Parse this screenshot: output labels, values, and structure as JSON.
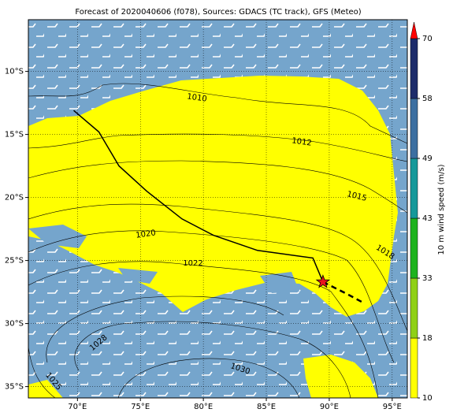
{
  "chart_data": {
    "type": "map",
    "title": "Forecast of 2020040606 (f078), Sources: GDACS (TC track), GFS (Meteo)",
    "xlim": [
      66.1,
      96.2
    ],
    "ylim": [
      -35.9,
      -5.9
    ],
    "xticks": [
      {
        "value": 70,
        "label": "70°E"
      },
      {
        "value": 75,
        "label": "75°E"
      },
      {
        "value": 80,
        "label": "80°E"
      },
      {
        "value": 85,
        "label": "85°E"
      },
      {
        "value": 90,
        "label": "90°E"
      },
      {
        "value": 95,
        "label": "95°E"
      }
    ],
    "yticks": [
      {
        "value": -10,
        "label": "10°S"
      },
      {
        "value": -15,
        "label": "15°S"
      },
      {
        "value": -20,
        "label": "20°S"
      },
      {
        "value": -25,
        "label": "25°S"
      },
      {
        "value": -30,
        "label": "30°S"
      },
      {
        "value": -35,
        "label": "35°S"
      }
    ],
    "grid": true,
    "track": {
      "x": [
        69.7,
        71.7,
        73.3,
        75.5,
        78.3,
        80.8,
        84.3,
        88.7,
        89.5
      ],
      "y": [
        -13.1,
        -14.8,
        -17.5,
        -19.5,
        -21.7,
        -23.0,
        -24.2,
        -24.8,
        -26.7
      ],
      "color": "#000000"
    },
    "forecast": {
      "x": [
        89.5,
        91.5,
        92.8
      ],
      "y": [
        -26.7,
        -27.7,
        -28.4
      ],
      "color": "#000000"
    },
    "current_position": {
      "x": 89.5,
      "y": -26.7,
      "color": "#e8141c"
    },
    "contour_labels": [
      "1010",
      "1012",
      "1015",
      "1018",
      "1020",
      "1022",
      "1028",
      "1030",
      "1025"
    ],
    "colorbar": {
      "label": "10 m wind speed (m/s)",
      "ticks": [
        10,
        18,
        33,
        43,
        49,
        58,
        70
      ],
      "colors": [
        "#ffff00",
        "#8fd016",
        "#1eb31e",
        "#16999a",
        "#3c6fa1",
        "#1d2c6a"
      ],
      "extend_color": "#ff0000"
    }
  }
}
